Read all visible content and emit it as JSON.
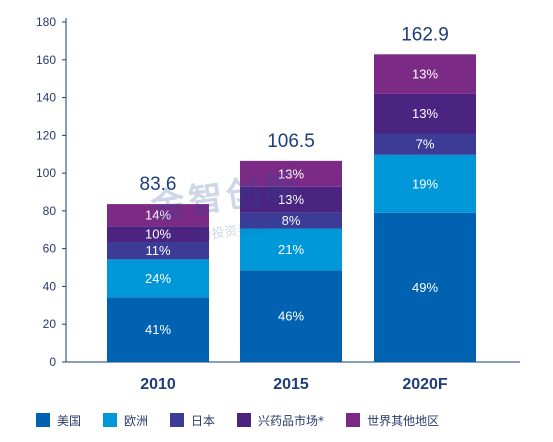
{
  "chart_data": {
    "type": "bar",
    "stacked": true,
    "categories": [
      "2010",
      "2015",
      "2020F"
    ],
    "totals": [
      "83.6",
      "106.5",
      "162.9"
    ],
    "total_values": [
      83.6,
      106.5,
      162.9
    ],
    "ylim": [
      0,
      180
    ],
    "yticks": [
      0,
      20,
      40,
      60,
      80,
      100,
      120,
      140,
      160,
      180
    ],
    "grid": false,
    "legend_position": "bottom",
    "series": [
      {
        "name": "美国",
        "color": "#0062b1",
        "shares": [
          41,
          46,
          49
        ],
        "labels": [
          "41%",
          "46%",
          "49%"
        ]
      },
      {
        "name": "欧洲",
        "color": "#0098d8",
        "shares": [
          24,
          21,
          19
        ],
        "labels": [
          "24%",
          "21%",
          "19%"
        ]
      },
      {
        "name": "日本",
        "color": "#3c3c96",
        "shares": [
          11,
          8,
          7
        ],
        "labels": [
          "11%",
          "8%",
          "7%"
        ]
      },
      {
        "name": "兴药品市场*",
        "color": "#4b2481",
        "shares": [
          10,
          13,
          13
        ],
        "labels": [
          "10%",
          "13%",
          "13%"
        ]
      },
      {
        "name": "世界其他地区",
        "color": "#7b2a86",
        "shares": [
          14,
          13,
          13
        ],
        "labels": [
          "14%",
          "13%",
          "13%"
        ]
      }
    ]
  },
  "watermark": {
    "title": "金智创新",
    "subtitle": "为投资者提供每一个"
  }
}
